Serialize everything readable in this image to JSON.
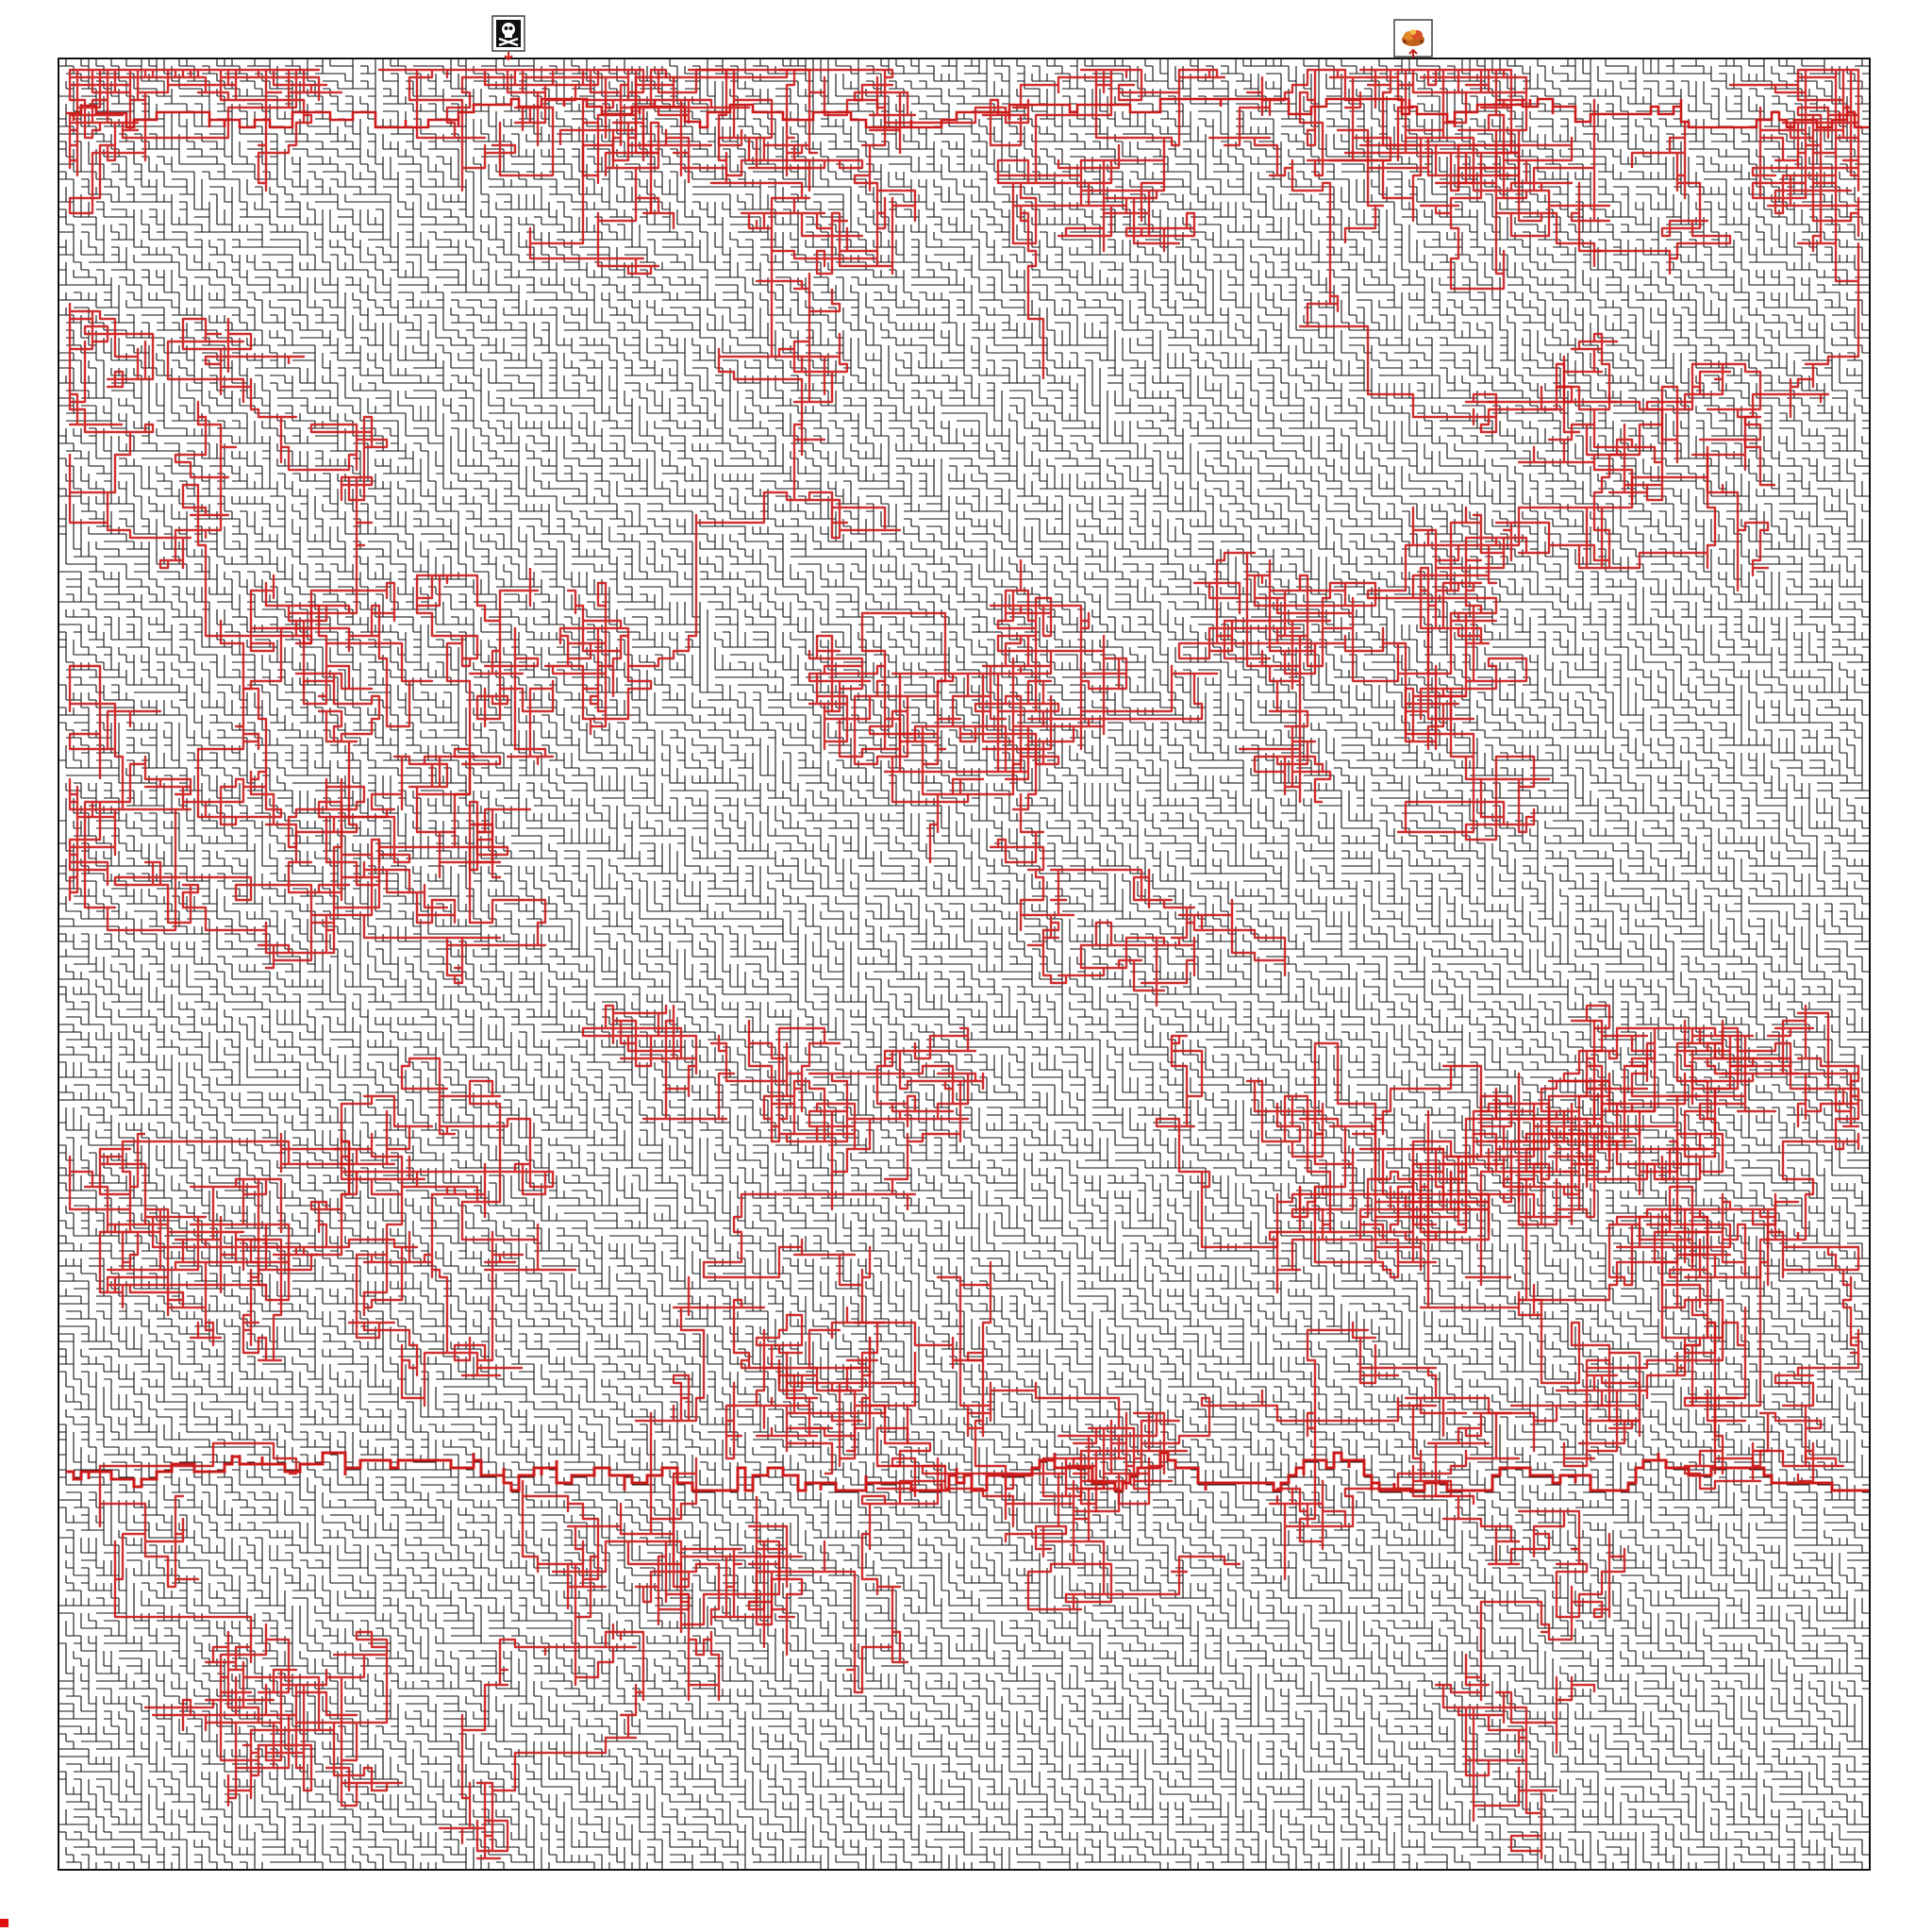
{
  "game": {
    "type": "maze",
    "start_marker": {
      "icon": "skull-crossbones-icon",
      "arrow_direction": "down",
      "color": "#111111"
    },
    "goal_marker": {
      "icon": "treasure-pile-icon",
      "arrow_direction": "up",
      "color": "#d27a1a"
    }
  },
  "colors": {
    "background": "#ffffff",
    "maze_wall": "#111111",
    "solution_path": "#cc1b1b",
    "marker_frame": "#444444",
    "corner_mark": "#e01010"
  }
}
